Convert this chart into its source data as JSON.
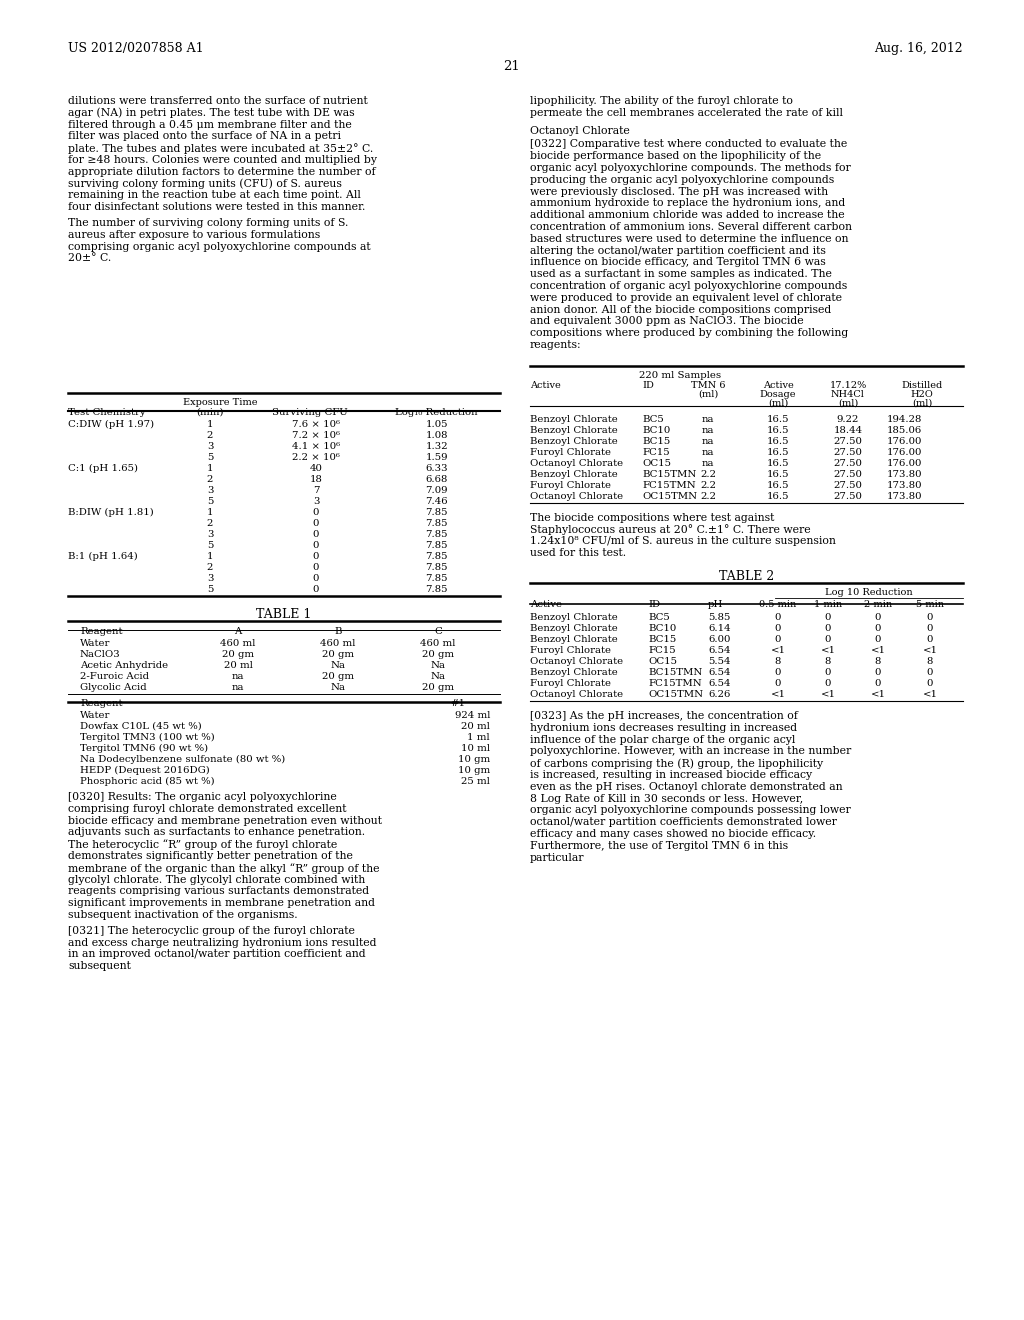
{
  "header_left": "US 2012/0207858 A1",
  "header_right": "Aug. 16, 2012",
  "page_number": "21",
  "left_col_para1": "dilutions were transferred onto the surface of nutrient agar (NA) in petri plates. The test tube with DE was filtered through a 0.45 μm membrane filter and the filter was placed onto the surface of NA in a petri plate. The tubes and plates were incubated at 35±2° C. for ≥48 hours. Colonies were counted and multiplied by appropriate dilution factors to determine the number of surviving colony forming units (CFU) of S. aureus remaining in the reaction tube at each time point. All four disinfectant solutions were tested in this manner.",
  "left_col_para2": "The number of surviving colony forming units of S. aureus after exposure to various formulations comprising organic acyl polyoxychlorine compounds at 20±° C.",
  "right_col_para0": "lipophilicity. The ability of the furoyl chlorate to permeate the cell membranes accelerated the rate of kill",
  "right_col_heading": "Octanoyl Chlorate",
  "right_col_para322": "[0322]    Comparative test where conducted to evaluate the biocide performance based on the lipophilicity of the organic acyl polyoxychlorine compounds. The methods for producing the organic acyl polyoxychlorine compounds were previously disclosed. The pH was increased with ammonium hydroxide to replace the hydronium ions, and additional ammonium chloride was added to increase the concentration of ammonium ions. Several different carbon based structures were used to determine the influence on altering the octanol/water partition coefficient and its influence on biocide efficacy, and Tergitol TMN 6 was used as a surfactant in some samples as indicated. The concentration of organic acyl polyoxychlorine compounds were produced to provide an equivalent level of chlorate anion donor. All of the biocide compositions comprised and equivalent 3000 ppm as NaClO3. The biocide compositions where produced by combining the following reagents:",
  "exposure_rows": [
    [
      "C:DIW (pH 1.97)",
      "1",
      "7.6 × 10⁶",
      "1.05"
    ],
    [
      "",
      "2",
      "7.2 × 10⁶",
      "1.08"
    ],
    [
      "",
      "3",
      "4.1 × 10⁶",
      "1.32"
    ],
    [
      "",
      "5",
      "2.2 × 10⁶",
      "1.59"
    ],
    [
      "C:1 (pH 1.65)",
      "1",
      "40",
      "6.33"
    ],
    [
      "",
      "2",
      "18",
      "6.68"
    ],
    [
      "",
      "3",
      "7",
      "7.09"
    ],
    [
      "",
      "5",
      "3",
      "7.46"
    ],
    [
      "B:DIW (pH 1.81)",
      "1",
      "0",
      "7.85"
    ],
    [
      "",
      "2",
      "0",
      "7.85"
    ],
    [
      "",
      "3",
      "0",
      "7.85"
    ],
    [
      "",
      "5",
      "0",
      "7.85"
    ],
    [
      "B:1 (pH 1.64)",
      "1",
      "0",
      "7.85"
    ],
    [
      "",
      "2",
      "0",
      "7.85"
    ],
    [
      "",
      "3",
      "0",
      "7.85"
    ],
    [
      "",
      "5",
      "0",
      "7.85"
    ]
  ],
  "table1_rows": [
    [
      "Water",
      "460 ml",
      "460 ml",
      "460 ml"
    ],
    [
      "NaClO3",
      "20 gm",
      "20 gm",
      "20 gm"
    ],
    [
      "Acetic Anhydride",
      "20 ml",
      "Na",
      "Na"
    ],
    [
      "2-Furoic Acid",
      "na",
      "20 gm",
      "Na"
    ],
    [
      "Glycolic Acid",
      "na",
      "Na",
      "20 gm"
    ]
  ],
  "table1_rows2": [
    [
      "Water",
      "924 ml"
    ],
    [
      "Dowfax C10L (45 wt %)",
      "20 ml"
    ],
    [
      "Tergitol TMN3 (100 wt %)",
      "1 ml"
    ],
    [
      "Tergitol TMN6 (90 wt %)",
      "10 ml"
    ],
    [
      "Na Dodecylbenzene sulfonate (80 wt %)",
      "10 gm"
    ],
    [
      "HEDP (Dequest 2016DG)",
      "10 gm"
    ],
    [
      "Phosphoric acid (85 wt %)",
      "25 ml"
    ]
  ],
  "para320": "[0320]    Results: The organic acyl polyoxychlorine comprising furoyl chlorate demonstrated excellent biocide efficacy and membrane penetration even without adjuvants such as surfactants to enhance penetration. The heterocyclic “R” group of the furoyl chlorate demonstrates significantly better penetration of the membrane of the organic than the alkyl “R” group of the glycolyl chlorate. The glycolyl chlorate combined with reagents comprising various surfactants demonstrated significant improvements in membrane penetration and subsequent inactivation of the organisms.",
  "para321": "[0321]    The heterocyclic group of the furoyl chlorate and excess charge neutralizing hydronium ions resulted in an improved octanol/water partition coefficient and subsequent",
  "samples_rows": [
    [
      "Benzoyl Chlorate",
      "BC5",
      "na",
      "16.5",
      "9.22",
      "194.28"
    ],
    [
      "Benzoyl Chlorate",
      "BC10",
      "na",
      "16.5",
      "18.44",
      "185.06"
    ],
    [
      "Benzoyl Chlorate",
      "BC15",
      "na",
      "16.5",
      "27.50",
      "176.00"
    ],
    [
      "Furoyl Chlorate",
      "FC15",
      "na",
      "16.5",
      "27.50",
      "176.00"
    ],
    [
      "Octanoyl Chlorate",
      "OC15",
      "na",
      "16.5",
      "27.50",
      "176.00"
    ],
    [
      "Benzoyl Chlorate",
      "BC15TMN",
      "2.2",
      "16.5",
      "27.50",
      "173.80"
    ],
    [
      "Furoyl Chlorate",
      "FC15TMN",
      "2.2",
      "16.5",
      "27.50",
      "173.80"
    ],
    [
      "Octanoyl Chlorate",
      "OC15TMN",
      "2.2",
      "16.5",
      "27.50",
      "173.80"
    ]
  ],
  "staph_text": "The biocide compositions where test against Staphylococcus aureus at 20° C.±1° C. There were 1.24x10⁸ CFU/ml of S. aureus in the culture suspension used for this test.",
  "table2_rows": [
    [
      "Benzoyl Chlorate",
      "BC5",
      "5.85",
      "0",
      "0",
      "0",
      "0"
    ],
    [
      "Benzoyl Chlorate",
      "BC10",
      "6.14",
      "0",
      "0",
      "0",
      "0"
    ],
    [
      "Benzoyl Chlorate",
      "BC15",
      "6.00",
      "0",
      "0",
      "0",
      "0"
    ],
    [
      "Furoyl Chlorate",
      "FC15",
      "6.54",
      "<1",
      "<1",
      "<1",
      "<1"
    ],
    [
      "Octanoyl Chlorate",
      "OC15",
      "5.54",
      "8",
      "8",
      "8",
      "8"
    ],
    [
      "Benzoyl Chlorate",
      "BC15TMN",
      "6.54",
      "0",
      "0",
      "0",
      "0"
    ],
    [
      "Furoyl Chlorate",
      "FC15TMN",
      "6.54",
      "0",
      "0",
      "0",
      "0"
    ],
    [
      "Octanoyl Chlorate",
      "OC15TMN",
      "6.26",
      "<1",
      "<1",
      "<1",
      "<1"
    ]
  ],
  "para323": "[0323]    As the pH increases, the concentration of hydronium ions decreases resulting in increased influence of the polar charge of the organic acyl polyoxychlorine. However, with an increase in the number of carbons comprising the (R) group, the lipophilicity is increased, resulting in increased biocide efficacy even as the pH rises. Octanoyl chlorate demonstrated an 8 Log Rate of Kill in 30 seconds or less. However, organic acyl polyoxychlorine compounds possessing lower octanol/water partition coefficients demonstrated lower efficacy and many cases showed no biocide efficacy. Furthermore, the use of Tergitol TMN 6 in this particular"
}
